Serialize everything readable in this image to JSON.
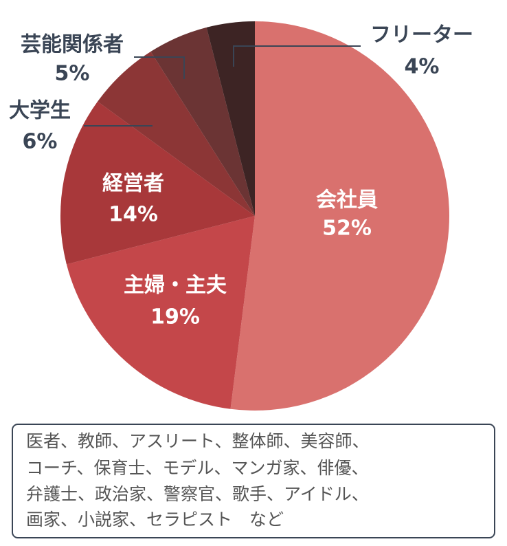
{
  "chart_data": {
    "type": "pie",
    "categories": [
      "会社員",
      "主婦・主夫",
      "経営者",
      "大学生",
      "芸能関係者",
      "フリーター"
    ],
    "values": [
      52,
      19,
      14,
      6,
      5,
      4
    ],
    "value_labels": [
      "52%",
      "19%",
      "14%",
      "6%",
      "5%",
      "4%"
    ],
    "colors": [
      "#d9716e",
      "#c4474a",
      "#a8383a",
      "#8c3636",
      "#6b3434",
      "#3d2424"
    ]
  },
  "note": [
    "医者、教師、アスリート、整体師、美容師、",
    "コーチ、保育士、モデル、マンガ家、俳優、",
    "弁護士、政治家、警察官、歌手、アイドル、",
    "画家、小説家、セラピスト　など"
  ]
}
